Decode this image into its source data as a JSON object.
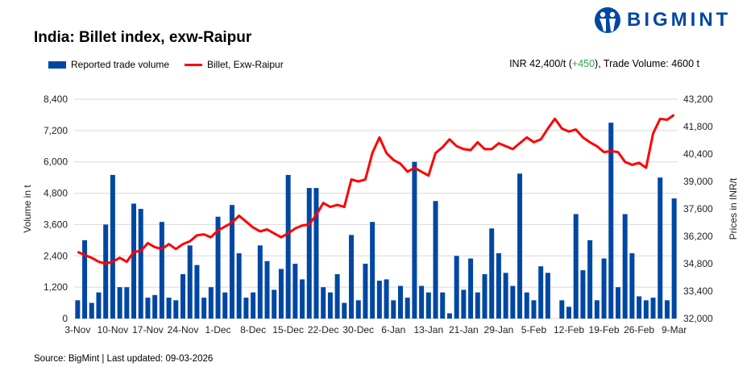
{
  "header": {
    "title": "India: Billet index, exw-Raipur",
    "logo_text": "BIGMINT",
    "summary_prefix": "INR 42,400/t (",
    "summary_change": "+450",
    "summary_suffix": "), Trade Volume: 4600 t"
  },
  "colors": {
    "bar": "#0047A3",
    "line": "#FF0000",
    "change_positive": "#2BA84A",
    "grid": "#D9D9D9"
  },
  "footer": {
    "source": "Source: BigMint | Last updated: 09-03-2026"
  },
  "chart_data": {
    "type": "bar+line",
    "title": "India: Billet index, exw-Raipur",
    "legend_position": "top-left",
    "grid": true,
    "y_left": {
      "label": "Volume in t",
      "range": [
        0,
        8400
      ],
      "ticks": [
        "0",
        "1,200",
        "2,400",
        "3,600",
        "4,800",
        "6,000",
        "7,200",
        "8,400"
      ]
    },
    "y_right": {
      "label": "Prices in INR/t",
      "range": [
        32000,
        43200
      ],
      "ticks": [
        "32,000",
        "33,400",
        "34,800",
        "36,200",
        "37,600",
        "39,000",
        "40,400",
        "41,800",
        "43,200"
      ]
    },
    "x_tick_labels": [
      "3-Nov",
      "10-Nov",
      "17-Nov",
      "24-Nov",
      "1-Dec",
      "8-Dec",
      "15-Dec",
      "22-Dec",
      "30-Dec",
      "6-Jan",
      "13-Jan",
      "21-Jan",
      "29-Jan",
      "5-Feb",
      "12-Feb",
      "19-Feb",
      "26-Feb",
      "9-Mar"
    ],
    "series": [
      {
        "name": "Reported trade volume",
        "type": "bar",
        "axis": "left",
        "values": [
          700,
          3000,
          600,
          1000,
          3600,
          5500,
          1200,
          1200,
          4400,
          4200,
          800,
          900,
          3700,
          800,
          700,
          1700,
          2800,
          2050,
          800,
          1200,
          3900,
          1000,
          4350,
          2500,
          800,
          1000,
          2800,
          2200,
          1100,
          1900,
          5500,
          2100,
          1500,
          5000,
          5000,
          1200,
          1000,
          1700,
          600,
          3200,
          700,
          2100,
          3700,
          1450,
          1500,
          700,
          1250,
          800,
          6000,
          1250,
          1000,
          4500,
          1000,
          200,
          2400,
          1100,
          2300,
          1000,
          1700,
          3450,
          2500,
          1750,
          1250,
          5550,
          1000,
          700,
          2000,
          1750,
          0,
          700,
          450,
          4000,
          1850,
          3000,
          700,
          2300,
          7500,
          1200,
          4000,
          2500,
          850,
          700,
          800,
          5400,
          700,
          4600
        ]
      },
      {
        "name": "Billet, Exw-Raipur",
        "type": "line",
        "axis": "right",
        "values": [
          35400,
          35250,
          35100,
          34900,
          34800,
          34900,
          35100,
          34900,
          35400,
          35450,
          35850,
          35650,
          35550,
          35800,
          35550,
          35800,
          35950,
          36250,
          36300,
          36150,
          36500,
          36700,
          36900,
          37250,
          36950,
          36650,
          36450,
          36550,
          36350,
          36150,
          36350,
          36600,
          36750,
          36800,
          37300,
          37900,
          37700,
          37800,
          37700,
          39100,
          39000,
          39100,
          40450,
          41250,
          40450,
          40100,
          39900,
          39500,
          39700,
          39500,
          39300,
          40450,
          40750,
          41150,
          40800,
          40650,
          40600,
          41000,
          40650,
          40650,
          40950,
          40800,
          40650,
          40950,
          41250,
          41000,
          41150,
          41700,
          42200,
          41700,
          41550,
          41650,
          41250,
          41000,
          40800,
          40500,
          40550,
          40500,
          40000,
          39850,
          39950,
          39700,
          41450,
          42200,
          42150,
          42400
        ]
      }
    ]
  }
}
